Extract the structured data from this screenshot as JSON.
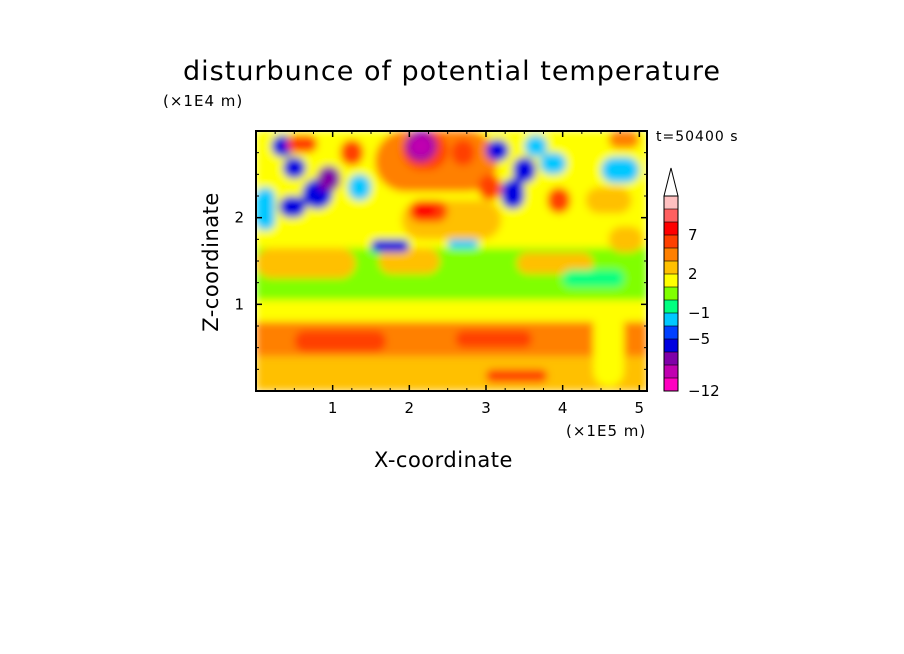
{
  "chart_data": {
    "type": "heatmap",
    "title": "disturbunce of potential temperature",
    "xlabel": "X-coordinate",
    "ylabel": "Z-coordinate",
    "x_unit": "(×1E5 m)",
    "y_unit": "(×1E4 m)",
    "time_label": "t=50400 s",
    "xlim": [
      0,
      5.1
    ],
    "ylim": [
      0,
      3.0
    ],
    "x_ticks": [
      "1",
      "2",
      "3",
      "4",
      "5"
    ],
    "y_ticks": [
      "1",
      "2"
    ],
    "colorbar": {
      "levels": [
        -12,
        -10,
        -8,
        -6,
        -5,
        -3,
        -1,
        0,
        1,
        2,
        3,
        5,
        7,
        9,
        11
      ],
      "labels": [
        "-12",
        "-5",
        "-1",
        "2",
        "7"
      ],
      "colors": [
        "#ff00c0",
        "#c000b0",
        "#8000a8",
        "#0000e0",
        "#0040ff",
        "#00c8ff",
        "#00ff80",
        "#80ff00",
        "#ffff00",
        "#ffc000",
        "#ff8000",
        "#ff4000",
        "#ff0000",
        "#ff6060",
        "#ffc0c0"
      ],
      "extend_max": true
    },
    "features": [
      {
        "x": 0.0,
        "z": 0.0,
        "w": 5.1,
        "h": 0.4,
        "value": 2
      },
      {
        "x": 0.0,
        "z": 0.4,
        "w": 5.1,
        "h": 0.4,
        "value": 3
      },
      {
        "x": 0.0,
        "z": 0.8,
        "w": 5.1,
        "h": 0.25,
        "value": 1
      },
      {
        "x": 0.0,
        "z": 1.05,
        "w": 5.1,
        "h": 0.6,
        "value": 0
      },
      {
        "x": 0.0,
        "z": 1.65,
        "w": 5.1,
        "h": 1.35,
        "value": 1
      },
      {
        "x": 0.5,
        "z": 0.45,
        "w": 1.2,
        "h": 0.25,
        "value": 5
      },
      {
        "x": 2.6,
        "z": 0.5,
        "w": 1.0,
        "h": 0.2,
        "value": 5
      },
      {
        "x": 3.0,
        "z": 0.1,
        "w": 0.8,
        "h": 0.15,
        "value": 5
      },
      {
        "x": 0.0,
        "z": 1.3,
        "w": 1.3,
        "h": 0.35,
        "value": 2
      },
      {
        "x": 1.6,
        "z": 1.35,
        "w": 0.8,
        "h": 0.3,
        "value": 2
      },
      {
        "x": 3.4,
        "z": 1.35,
        "w": 1.0,
        "h": 0.25,
        "value": 2
      },
      {
        "x": 1.9,
        "z": 1.75,
        "w": 1.3,
        "h": 0.45,
        "value": 2
      },
      {
        "x": 2.0,
        "z": 1.95,
        "w": 0.5,
        "h": 0.25,
        "value": 5
      },
      {
        "x": 2.05,
        "z": 2.0,
        "w": 0.3,
        "h": 0.18,
        "value": 7
      },
      {
        "x": 1.55,
        "z": 2.3,
        "w": 1.6,
        "h": 0.7,
        "value": 3
      },
      {
        "x": 1.9,
        "z": 2.55,
        "w": 0.6,
        "h": 0.45,
        "value": 5
      },
      {
        "x": 1.95,
        "z": 2.65,
        "w": 0.4,
        "h": 0.35,
        "value": -8
      },
      {
        "x": 2.0,
        "z": 2.7,
        "w": 0.3,
        "h": 0.25,
        "value": -10
      },
      {
        "x": 1.5,
        "z": 1.6,
        "w": 0.5,
        "h": 0.15,
        "value": -6
      },
      {
        "x": 2.5,
        "z": 1.65,
        "w": 0.4,
        "h": 0.1,
        "value": -3
      },
      {
        "x": 1.1,
        "z": 2.6,
        "w": 0.3,
        "h": 0.3,
        "value": 5
      },
      {
        "x": 2.55,
        "z": 2.6,
        "w": 0.3,
        "h": 0.3,
        "value": 5
      },
      {
        "x": 0.0,
        "z": 1.85,
        "w": 0.25,
        "h": 0.5,
        "value": -3
      },
      {
        "x": 0.3,
        "z": 2.0,
        "w": 0.35,
        "h": 0.25,
        "value": -6
      },
      {
        "x": 0.6,
        "z": 2.1,
        "w": 0.4,
        "h": 0.35,
        "value": -6
      },
      {
        "x": 0.8,
        "z": 2.3,
        "w": 0.3,
        "h": 0.3,
        "value": -8
      },
      {
        "x": 0.35,
        "z": 2.45,
        "w": 0.3,
        "h": 0.25,
        "value": -6
      },
      {
        "x": 0.2,
        "z": 2.7,
        "w": 0.3,
        "h": 0.25,
        "value": -6
      },
      {
        "x": 1.2,
        "z": 2.2,
        "w": 0.3,
        "h": 0.3,
        "value": -3
      },
      {
        "x": 0.4,
        "z": 2.75,
        "w": 0.4,
        "h": 0.2,
        "value": 5
      },
      {
        "x": 3.2,
        "z": 2.1,
        "w": 0.3,
        "h": 0.35,
        "value": -6
      },
      {
        "x": 3.35,
        "z": 2.4,
        "w": 0.3,
        "h": 0.3,
        "value": -6
      },
      {
        "x": 3.0,
        "z": 2.65,
        "w": 0.3,
        "h": 0.25,
        "value": -6
      },
      {
        "x": 3.5,
        "z": 2.7,
        "w": 0.3,
        "h": 0.25,
        "value": -3
      },
      {
        "x": 3.7,
        "z": 2.5,
        "w": 0.35,
        "h": 0.25,
        "value": -3
      },
      {
        "x": 3.8,
        "z": 2.05,
        "w": 0.3,
        "h": 0.3,
        "value": 5
      },
      {
        "x": 2.9,
        "z": 2.2,
        "w": 0.3,
        "h": 0.3,
        "value": 5
      },
      {
        "x": 4.5,
        "z": 2.4,
        "w": 0.5,
        "h": 0.3,
        "value": -3
      },
      {
        "x": 4.3,
        "z": 2.05,
        "w": 0.6,
        "h": 0.3,
        "value": 2
      },
      {
        "x": 4.6,
        "z": 1.6,
        "w": 0.45,
        "h": 0.3,
        "value": 2
      },
      {
        "x": 4.6,
        "z": 2.8,
        "w": 0.4,
        "h": 0.2,
        "value": 3
      },
      {
        "x": 4.0,
        "z": 1.2,
        "w": 0.8,
        "h": 0.2,
        "value": -1
      },
      {
        "x": 4.4,
        "z": 0.05,
        "w": 0.4,
        "h": 0.95,
        "value": 1
      }
    ]
  }
}
